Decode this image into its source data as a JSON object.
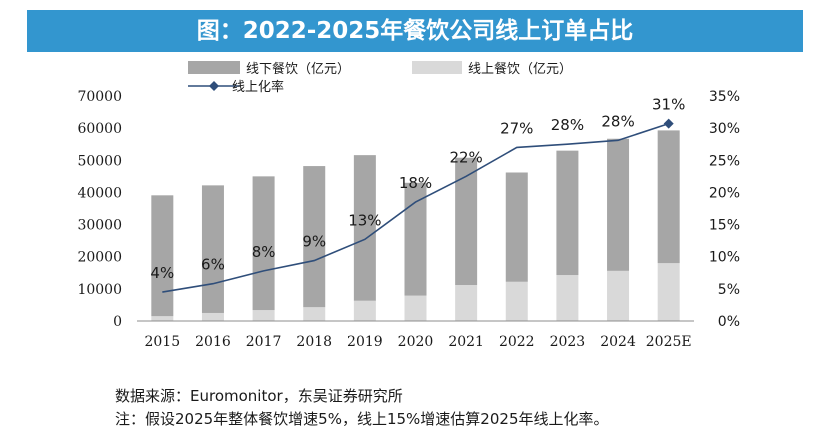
{
  "page": {
    "title": "图：2022-2025年餐饮公司线上订单占比",
    "source_note": "数据来源：Euromonitor，东吴证券研究所",
    "assumption_note": "注：假设2025年整体餐饮增速5%，线上15%增速估算2025年线上化率。"
  },
  "chart_data": {
    "type": "bar",
    "title": "图：2022-2025年餐饮公司线上订单占比",
    "categories": [
      "2015",
      "2016",
      "2017",
      "2018",
      "2019",
      "2020",
      "2021",
      "2022",
      "2023",
      "2024",
      "2025E"
    ],
    "series": [
      {
        "name": "线下餐饮（亿元）",
        "type": "bar",
        "stack": "total",
        "color": "#a6a6a6",
        "values": [
          37600,
          39700,
          41600,
          43900,
          45300,
          35100,
          39600,
          34000,
          38700,
          41100,
          41300
        ]
      },
      {
        "name": "线上餐饮（亿元）",
        "type": "bar",
        "stack": "total",
        "color": "#d9d9d9",
        "values": [
          1500,
          2500,
          3400,
          4300,
          6300,
          7900,
          11200,
          12200,
          14300,
          15600,
          18000
        ]
      },
      {
        "name": "线上化率",
        "type": "line",
        "axis": "right",
        "color": "#2f4e7a",
        "values": [
          4.5,
          5.8,
          7.8,
          9.4,
          12.7,
          18.5,
          22.5,
          27.0,
          27.5,
          28.1,
          30.7
        ],
        "labels": [
          "4%",
          "6%",
          "8%",
          "9%",
          "13%",
          "18%",
          "22%",
          "27%",
          "28%",
          "28%",
          "31%"
        ],
        "marker_last": "diamond"
      }
    ],
    "y_left": {
      "min": 0,
      "max": 70000,
      "ticks": [
        "0",
        "10000",
        "20000",
        "30000",
        "40000",
        "50000",
        "60000",
        "70000"
      ]
    },
    "y_right": {
      "min": 0,
      "max": 35,
      "ticks": [
        "0%",
        "5%",
        "10%",
        "15%",
        "20%",
        "25%",
        "30%",
        "35%"
      ]
    },
    "grid": false,
    "legend_position": "top-left"
  }
}
